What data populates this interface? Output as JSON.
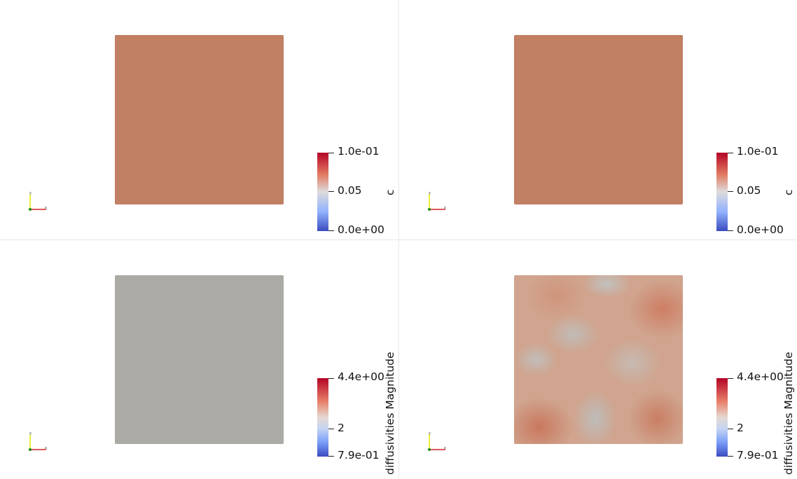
{
  "colors": {
    "background": "#ffffff",
    "separator": "#e6e6e6",
    "c_field": "#c17f63",
    "diffusivity_uniform": "#abaaa5",
    "colormap_high": "#b40426",
    "colormap_mid": "#dddcdc",
    "colormap_low": "#3b4cc0"
  },
  "viewports": {
    "top_left": {
      "colorbar": {
        "title": "c",
        "max_label": "1.0e-01",
        "mid_label": "0.05",
        "min_label": "0.0e+00"
      }
    },
    "top_right": {
      "colorbar": {
        "title": "c",
        "max_label": "1.0e-01",
        "mid_label": "0.05",
        "min_label": "0.0e+00"
      }
    },
    "bottom_left": {
      "colorbar": {
        "title": "diffusivities Magnitude",
        "max_label": "4.4e+00",
        "mid_label": "2",
        "min_label": "7.9e-01"
      }
    },
    "bottom_right": {
      "colorbar": {
        "title": "diffusivities Magnitude",
        "max_label": "4.4e+00",
        "mid_label": "2",
        "min_label": "7.9e-01"
      }
    }
  },
  "icons": [
    "orientation-axes-icon"
  ]
}
